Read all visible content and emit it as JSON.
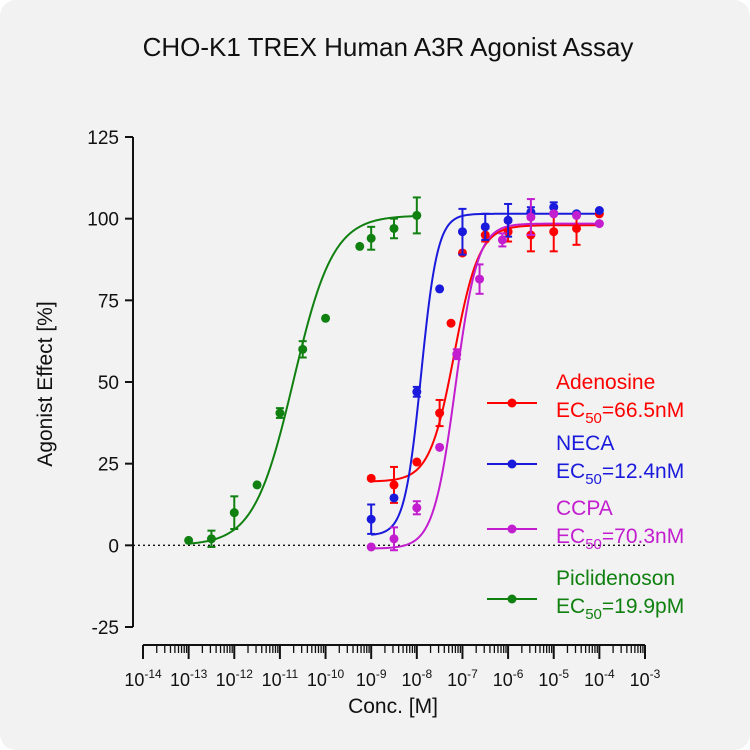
{
  "chart_data": {
    "type": "scatter",
    "title": "CHO-K1 TREX Human A3R Agonist Assay",
    "xlabel": "Conc. [M]",
    "ylabel": "Agonist Effect [%]",
    "x_scale": "log10",
    "xlim_exponent": [
      -14,
      -3
    ],
    "x_tick_base": "10",
    "x_tick_exponents": [
      "-14",
      "-13",
      "-12",
      "-11",
      "-10",
      "-9",
      "-8",
      "-7",
      "-6",
      "-5",
      "-4",
      "-3"
    ],
    "ylim": [
      -25,
      125
    ],
    "y_ticks": [
      "-25",
      "0",
      "25",
      "50",
      "75",
      "100",
      "125"
    ],
    "baseline": 0,
    "grid": false,
    "legend_position": "right",
    "series": [
      {
        "name": "Adenosine",
        "ec50_prefix": "EC",
        "ec50_sub": "50",
        "ec50_value": "=66.5nM",
        "ec50_M": 6.65e-08,
        "color": "#ff0000",
        "fit": {
          "bottom": 19.5,
          "top": 98,
          "hill": 1.6
        },
        "points": [
          {
            "x": 1e-09,
            "y": 20.5,
            "err": 0
          },
          {
            "x": 3.16e-09,
            "y": 18.5,
            "err": 5.5
          },
          {
            "x": 1e-08,
            "y": 25.5,
            "err": 0
          },
          {
            "x": 3.16e-08,
            "y": 40.5,
            "err": 4
          },
          {
            "x": 5.62e-08,
            "y": 68,
            "err": 0
          },
          {
            "x": 1e-07,
            "y": 89.5,
            "err": 0
          },
          {
            "x": 3.16e-07,
            "y": 95,
            "err": 2
          },
          {
            "x": 1e-06,
            "y": 96,
            "err": 3
          },
          {
            "x": 3.16e-06,
            "y": 95,
            "err": 5
          },
          {
            "x": 1e-05,
            "y": 96,
            "err": 6
          },
          {
            "x": 3.16e-05,
            "y": 97,
            "err": 5
          },
          {
            "x": 0.0001,
            "y": 101.5,
            "err": 0
          }
        ]
      },
      {
        "name": "NECA",
        "ec50_prefix": "EC",
        "ec50_sub": "50",
        "ec50_value": "=12.4nM",
        "ec50_M": 1.24e-08,
        "color": "#1a1adc",
        "fit": {
          "bottom": 3,
          "top": 101.5,
          "hill": 2.4
        },
        "points": [
          {
            "x": 1e-09,
            "y": 8,
            "err": 4.5
          },
          {
            "x": 3.16e-09,
            "y": 14.5,
            "err": 0
          },
          {
            "x": 1e-08,
            "y": 47,
            "err": 1.5
          },
          {
            "x": 3.16e-08,
            "y": 78.5,
            "err": 0
          },
          {
            "x": 1e-07,
            "y": 96,
            "err": 7
          },
          {
            "x": 3.16e-07,
            "y": 97.5,
            "err": 4
          },
          {
            "x": 1e-06,
            "y": 99.5,
            "err": 5
          },
          {
            "x": 3.16e-06,
            "y": 102,
            "err": 1.5
          },
          {
            "x": 1e-05,
            "y": 103.5,
            "err": 1.5
          },
          {
            "x": 3.16e-05,
            "y": 101.5,
            "err": 0
          },
          {
            "x": 0.0001,
            "y": 102.5,
            "err": 0
          }
        ]
      },
      {
        "name": "CCPA",
        "ec50_prefix": "EC",
        "ec50_sub": "50",
        "ec50_value": "=70.3nM",
        "ec50_M": 7.03e-08,
        "color": "#c21ecf",
        "fit": {
          "bottom": -1,
          "top": 98.5,
          "hill": 1.8
        },
        "points": [
          {
            "x": 1e-09,
            "y": -0.5,
            "err": 0
          },
          {
            "x": 3.16e-09,
            "y": 2,
            "err": 3.5
          },
          {
            "x": 1e-08,
            "y": 11.5,
            "err": 2
          },
          {
            "x": 3.16e-08,
            "y": 30,
            "err": 0
          },
          {
            "x": 7.5e-08,
            "y": 58.5,
            "err": 1.5
          },
          {
            "x": 2.37e-07,
            "y": 81.5,
            "err": 4.5
          },
          {
            "x": 7.5e-07,
            "y": 93.5,
            "err": 2
          },
          {
            "x": 3.16e-06,
            "y": 100.5,
            "err": 5.5
          },
          {
            "x": 1e-05,
            "y": 101.5,
            "err": 0
          },
          {
            "x": 3.16e-05,
            "y": 101,
            "err": 0
          },
          {
            "x": 0.0001,
            "y": 98.5,
            "err": 0
          }
        ]
      },
      {
        "name": "Piclidenoson",
        "ec50_prefix": "EC",
        "ec50_sub": "50",
        "ec50_value": "=19.9pM",
        "ec50_M": 1.99e-11,
        "color": "#108010",
        "fit": {
          "bottom": 0,
          "top": 101,
          "hill": 1.0
        },
        "points": [
          {
            "x": 1e-13,
            "y": 1.5,
            "err": 0
          },
          {
            "x": 3.16e-13,
            "y": 2,
            "err": 2.5
          },
          {
            "x": 1e-12,
            "y": 10,
            "err": 5
          },
          {
            "x": 3.16e-12,
            "y": 18.5,
            "err": 0
          },
          {
            "x": 1e-11,
            "y": 40.5,
            "err": 1.5
          },
          {
            "x": 3.16e-11,
            "y": 60,
            "err": 2.5
          },
          {
            "x": 1e-10,
            "y": 69.5,
            "err": 0
          },
          {
            "x": 5.62e-10,
            "y": 91.5,
            "err": 0
          },
          {
            "x": 1e-09,
            "y": 94,
            "err": 3.5
          },
          {
            "x": 3.16e-09,
            "y": 97,
            "err": 3
          },
          {
            "x": 1e-08,
            "y": 101,
            "err": 5.5
          }
        ]
      }
    ]
  }
}
